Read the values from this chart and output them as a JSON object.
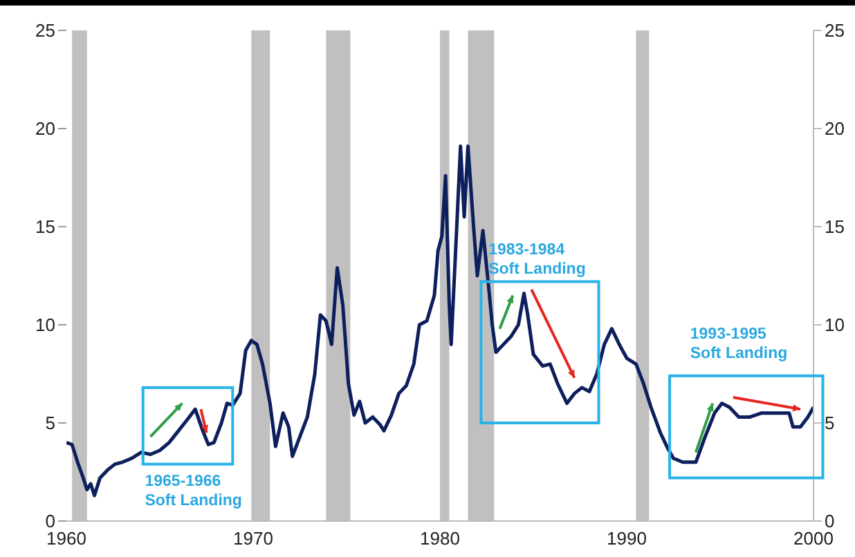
{
  "chart_data": {
    "type": "line",
    "x": [
      1960.0,
      1960.3,
      1960.6,
      1960.9,
      1961.1,
      1961.3,
      1961.5,
      1961.8,
      1962.2,
      1962.6,
      1963.0,
      1963.5,
      1964.0,
      1964.5,
      1965.0,
      1965.5,
      1966.0,
      1966.5,
      1966.9,
      1967.3,
      1967.6,
      1967.9,
      1968.3,
      1968.6,
      1968.9,
      1969.3,
      1969.6,
      1969.9,
      1970.2,
      1970.5,
      1970.9,
      1971.2,
      1971.6,
      1971.9,
      1972.1,
      1972.5,
      1972.9,
      1973.3,
      1973.6,
      1973.9,
      1974.2,
      1974.5,
      1974.8,
      1975.1,
      1975.4,
      1975.7,
      1976.0,
      1976.4,
      1976.8,
      1977.0,
      1977.4,
      1977.8,
      1978.2,
      1978.6,
      1978.9,
      1979.3,
      1979.7,
      1979.9,
      1980.1,
      1980.3,
      1980.5,
      1980.6,
      1980.9,
      1981.1,
      1981.3,
      1981.5,
      1981.8,
      1982.0,
      1982.3,
      1982.6,
      1982.8,
      1983.0,
      1983.4,
      1983.8,
      1984.2,
      1984.5,
      1984.7,
      1985.0,
      1985.5,
      1985.9,
      1986.3,
      1986.8,
      1987.2,
      1987.6,
      1988.0,
      1988.4,
      1988.8,
      1989.2,
      1989.6,
      1990.0,
      1990.5,
      1990.9,
      1991.3,
      1991.8,
      1992.2,
      1992.5,
      1993.0,
      1993.7,
      1994.2,
      1994.7,
      1995.1,
      1995.5,
      1996.0,
      1996.6,
      1997.2,
      1998.0,
      1998.7,
      1998.9,
      1999.3,
      1999.7,
      2000.0
    ],
    "series": [
      {
        "color": "#0d1f5c",
        "values": [
          4.0,
          3.9,
          3.0,
          2.2,
          1.6,
          1.9,
          1.3,
          2.2,
          2.6,
          2.9,
          3.0,
          3.2,
          3.5,
          3.4,
          3.6,
          4.0,
          4.6,
          5.2,
          5.7,
          4.6,
          3.9,
          4.0,
          5.0,
          6.0,
          5.9,
          6.5,
          8.7,
          9.2,
          9.0,
          8.0,
          6.0,
          3.8,
          5.5,
          4.8,
          3.3,
          4.3,
          5.3,
          7.5,
          10.5,
          10.2,
          9.0,
          12.9,
          11.0,
          7.0,
          5.4,
          6.1,
          5.0,
          5.3,
          4.9,
          4.6,
          5.4,
          6.5,
          6.9,
          8.0,
          10.0,
          10.2,
          11.5,
          13.8,
          14.5,
          17.6,
          11.0,
          9.0,
          15.0,
          19.1,
          15.5,
          19.1,
          15.0,
          12.5,
          14.8,
          12.0,
          10.0,
          8.6,
          9.0,
          9.4,
          10.0,
          11.6,
          10.5,
          8.5,
          7.9,
          8.0,
          7.0,
          6.0,
          6.5,
          6.8,
          6.6,
          7.5,
          9.0,
          9.8,
          9.0,
          8.3,
          8.0,
          7.0,
          5.8,
          4.5,
          3.7,
          3.2,
          3.0,
          3.0,
          4.3,
          5.5,
          6.0,
          5.8,
          5.3,
          5.3,
          5.5,
          5.5,
          5.5,
          4.8,
          4.8,
          5.3,
          5.8
        ]
      }
    ],
    "xlim": [
      1960,
      2000
    ],
    "xticks": [
      1960,
      1970,
      1980,
      1990,
      2000
    ],
    "ylim": [
      0,
      25
    ],
    "yticks": [
      0,
      5,
      10,
      15,
      20,
      25
    ],
    "y2lim": [
      0,
      25
    ],
    "y2ticks": [
      0,
      5,
      10,
      15,
      20,
      25
    ],
    "grid": false,
    "marker": "none",
    "line_style": "solid",
    "bands": [
      {
        "axis": "x",
        "from": 1960.3,
        "to": 1961.1,
        "color": "#c0c0c0"
      },
      {
        "axis": "x",
        "from": 1969.9,
        "to": 1970.9,
        "color": "#c0c0c0"
      },
      {
        "axis": "x",
        "from": 1973.9,
        "to": 1975.2,
        "color": "#c0c0c0"
      },
      {
        "axis": "x",
        "from": 1980.0,
        "to": 1980.5,
        "color": "#c0c0c0"
      },
      {
        "axis": "x",
        "from": 1981.5,
        "to": 1982.9,
        "color": "#c0c0c0"
      },
      {
        "axis": "x",
        "from": 1990.5,
        "to": 1991.2,
        "color": "#c0c0c0"
      }
    ],
    "annotations": [
      "1965-1966 Soft Landing",
      "1983-1984 Soft Landing",
      "1993-1995 Soft Landing"
    ]
  }
}
